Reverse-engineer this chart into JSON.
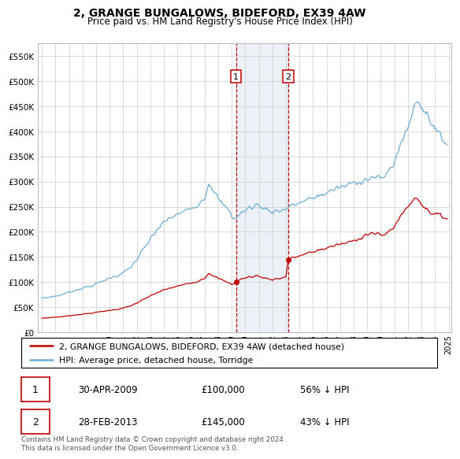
{
  "title": "2, GRANGE BUNGALOWS, BIDEFORD, EX39 4AW",
  "subtitle": "Price paid vs. HM Land Registry's House Price Index (HPI)",
  "legend_line1": "2, GRANGE BUNGALOWS, BIDEFORD, EX39 4AW (detached house)",
  "legend_line2": "HPI: Average price, detached house, Torridge",
  "transaction1_date": "30-APR-2009",
  "transaction1_price": "£100,000",
  "transaction1_pct": "56% ↓ HPI",
  "transaction2_date": "28-FEB-2013",
  "transaction2_price": "£145,000",
  "transaction2_pct": "43% ↓ HPI",
  "footnote": "Contains HM Land Registry data © Crown copyright and database right 2024.\nThis data is licensed under the Open Government Licence v3.0.",
  "hpi_color": "#6baed6",
  "price_color": "#c00000",
  "transaction_color": "#c00000",
  "shading_color": "#dce6f1",
  "shading_alpha": 0.55,
  "ylim_min": 0,
  "ylim_max": 575000,
  "yticks": [
    0,
    50000,
    100000,
    150000,
    200000,
    250000,
    300000,
    350000,
    400000,
    450000,
    500000,
    550000
  ],
  "transaction1_x": 2009.33,
  "transaction2_x": 2013.17,
  "transaction1_y": 100000,
  "transaction2_y": 145000,
  "xmin": 1994.7,
  "xmax": 2025.2
}
